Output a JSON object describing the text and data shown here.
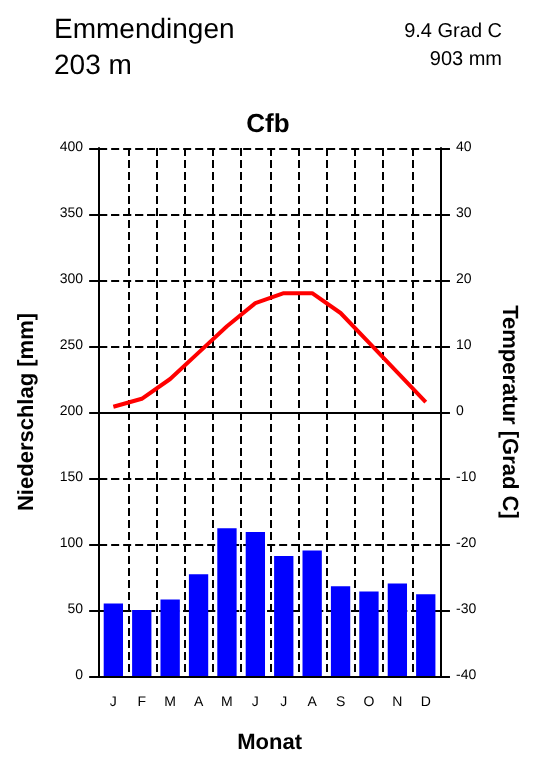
{
  "chart_data": {
    "type": "bar",
    "title": "Emmendingen",
    "subtitle": "203 m",
    "annotations": [
      "9.4 Grad C",
      "903 mm",
      "Cfb"
    ],
    "xlabel": "Monat",
    "ylabel": "Niederschlag [mm]",
    "y2label": "Temperatur [Grad C]",
    "categories": [
      "J",
      "F",
      "M",
      "A",
      "M",
      "J",
      "J",
      "A",
      "S",
      "O",
      "N",
      "D"
    ],
    "series": [
      {
        "color": "#0000ff",
        "values": [
          55,
          50,
          58,
          77,
          112,
          109,
          91,
          95,
          68,
          64,
          70,
          62
        ]
      },
      {
        "type": "line",
        "axis": "y2",
        "color": "#ff0000",
        "values": [
          0.8,
          2,
          5,
          9,
          13,
          16.5,
          18,
          18,
          15,
          10.5,
          6,
          1.5
        ]
      }
    ],
    "ylim": [
      0,
      400
    ],
    "yticks": [
      0,
      50,
      100,
      150,
      200,
      250,
      300,
      350,
      400
    ],
    "y2lim": [
      -40,
      40
    ],
    "y2ticks": [
      -40,
      -30,
      -20,
      -10,
      0,
      10,
      20,
      30,
      40
    ],
    "ref_lines": [
      {
        "axis": "y2",
        "value": 0,
        "color": "#000000"
      }
    ],
    "grid": true,
    "marker": "none",
    "line_style": "solid"
  }
}
